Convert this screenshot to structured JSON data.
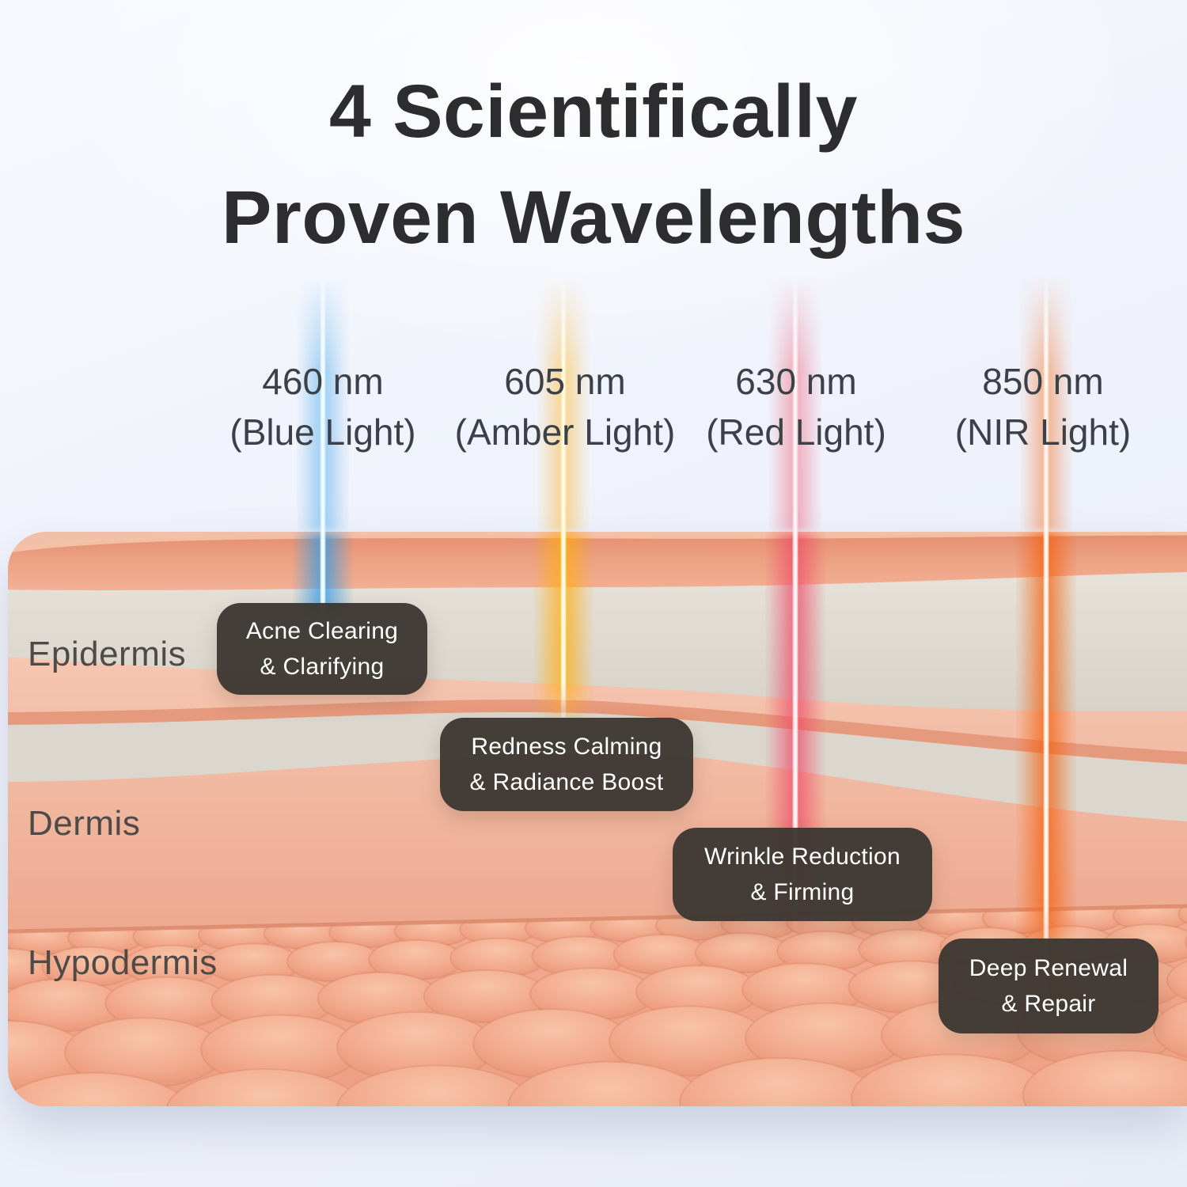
{
  "title": {
    "line1": "4 Scientifically",
    "line2": "Proven Wavelengths"
  },
  "wavelengths": [
    {
      "nm": "460 nm",
      "light": "(Blue Light)",
      "beam_color": "#2F9BE8",
      "beam_core": "#D6F3FF",
      "benefit": {
        "line1": "Acne Clearing",
        "line2": "& Clarifying"
      }
    },
    {
      "nm": "605 nm",
      "light": "(Amber Light)",
      "beam_color": "#FFAD0F",
      "beam_core": "#FFEFB5",
      "benefit": {
        "line1": "Redness Calming",
        "line2": "& Radiance Boost"
      }
    },
    {
      "nm": "630 nm",
      "light": "(Red Light)",
      "beam_color": "#EE4D68",
      "beam_core": "#FFDDE2",
      "benefit": {
        "line1": "Wrinkle Reduction",
        "line2": "& Firming"
      }
    },
    {
      "nm": "850 nm",
      "light": "(NIR Light)",
      "beam_color": "#F4610F",
      "beam_core": "#FFE2CC",
      "benefit": {
        "line1": "Deep Renewal",
        "line2": "& Repair"
      }
    }
  ],
  "skin_layers": [
    {
      "label": "Epidermis"
    },
    {
      "label": "Dermis"
    },
    {
      "label": "Hypodermis"
    }
  ],
  "style": {
    "badge_bg": "#3C3732",
    "badge_text": "#FFFFFF",
    "title_color": "#2D2D30",
    "wavelength_text_color": "#3C4147",
    "layer_label_color": "#4E4A47"
  }
}
